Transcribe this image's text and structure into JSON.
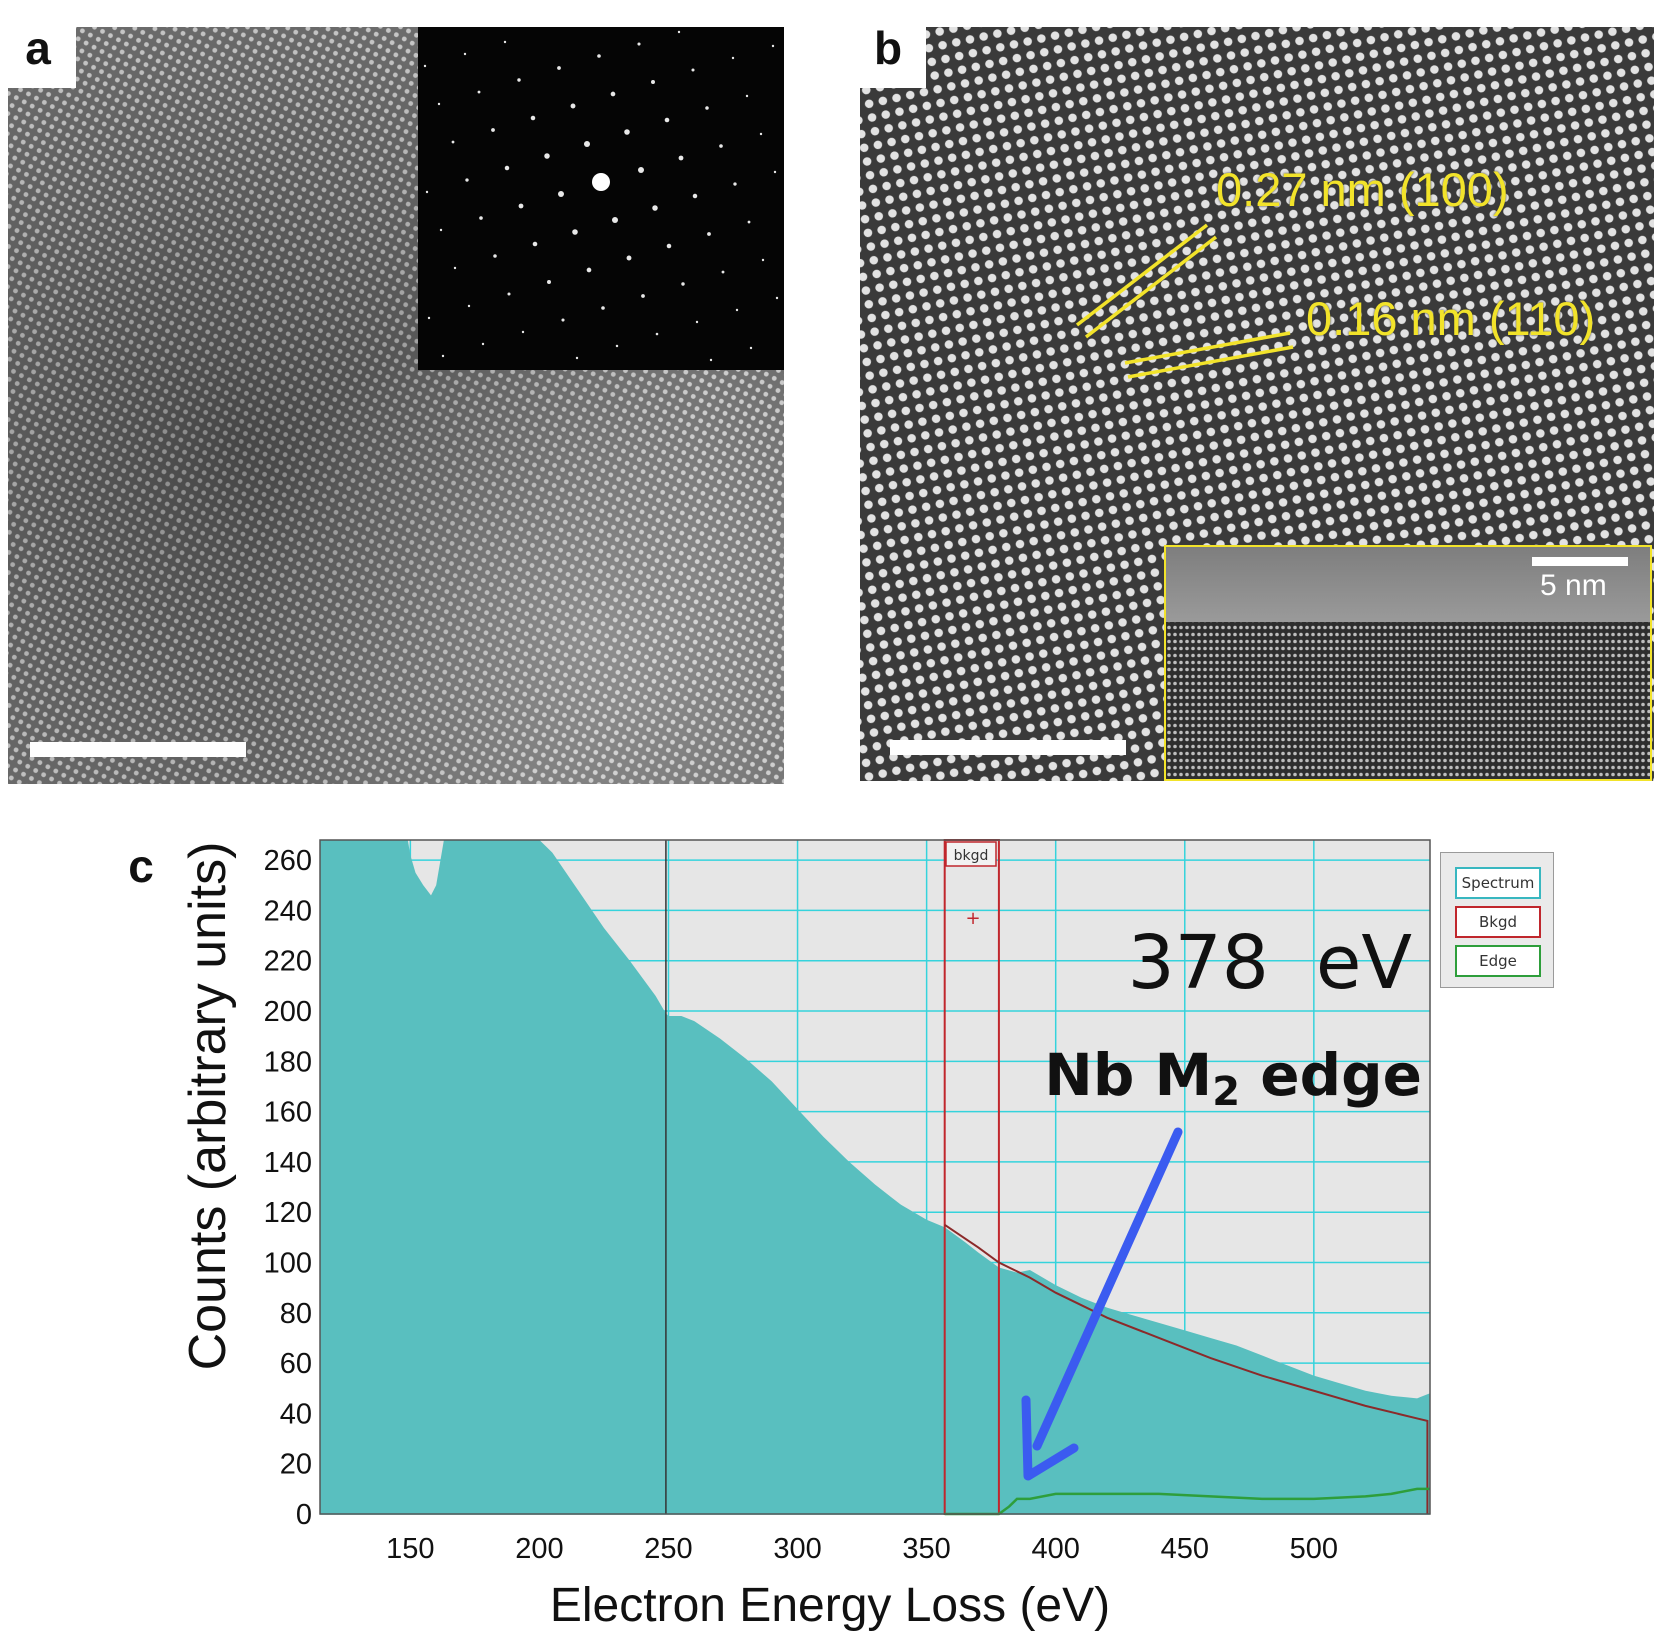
{
  "panel_a": {
    "label": "a"
  },
  "panel_b": {
    "label": "b",
    "annotation_100": "0.27 nm (100)",
    "annotation_110": "0.16 nm (110)",
    "inset_scale_label": "5 nm",
    "annotation_color": "#f2e32a"
  },
  "panel_c": {
    "label": "c",
    "energy_text": "378  eV",
    "edge_text_prefix": "Nb M",
    "edge_text_sub": "2",
    "edge_text_suffix": " edge",
    "bkgd_label": "bkgd",
    "legend": [
      "Spectrum",
      "Bkgd",
      "Edge"
    ],
    "legend_colors": [
      "#38b7c0",
      "#c0272d",
      "#2e9e3b"
    ],
    "arrow_color": "#3b5bf0",
    "fill_color": "#59bfbf"
  },
  "chart_data": {
    "type": "area",
    "xlabel": "Electron Energy Loss (eV)",
    "ylabel": "Counts (arbitrary units)",
    "xlim": [
      115,
      545
    ],
    "ylim": [
      0,
      268
    ],
    "x_ticks": [
      150,
      200,
      250,
      300,
      350,
      400,
      450,
      500
    ],
    "y_ticks": [
      0,
      20,
      40,
      60,
      80,
      100,
      120,
      140,
      160,
      180,
      200,
      220,
      240,
      260
    ],
    "grid": true,
    "legend_position": "right",
    "series": [
      {
        "name": "Spectrum",
        "x": [
          115,
          149,
          150,
          152,
          155,
          158,
          160,
          162,
          163,
          165,
          170,
          200,
          205,
          215,
          225,
          235,
          245,
          249,
          250,
          255,
          260,
          270,
          280,
          290,
          300,
          310,
          320,
          330,
          340,
          350,
          357,
          365,
          370,
          378,
          385,
          390,
          400,
          410,
          420,
          430,
          440,
          450,
          460,
          470,
          480,
          490,
          500,
          510,
          520,
          530,
          540,
          545
        ],
        "y": [
          268,
          268,
          262,
          255,
          250,
          246,
          250,
          262,
          268,
          268,
          268,
          268,
          263,
          248,
          233,
          220,
          206,
          199,
          198,
          198,
          196,
          189,
          181,
          172,
          161,
          150,
          140,
          131,
          123,
          117,
          114,
          108,
          104,
          98,
          96,
          97,
          91,
          86,
          82,
          79,
          76,
          73,
          70,
          67,
          63,
          59,
          55,
          52,
          49,
          47,
          46,
          48
        ]
      },
      {
        "name": "Bkgd",
        "x": [
          357,
          370,
          378,
          390,
          400,
          420,
          440,
          460,
          480,
          500,
          520,
          540,
          544
        ],
        "y": [
          115,
          106,
          100,
          94,
          88,
          78,
          70,
          62,
          55,
          49,
          43,
          38,
          37
        ]
      },
      {
        "name": "Edge",
        "x": [
          378,
          382,
          385,
          390,
          400,
          420,
          440,
          460,
          480,
          500,
          520,
          530,
          540,
          545
        ],
        "y": [
          0,
          3,
          6,
          6,
          8,
          8,
          8,
          7,
          6,
          6,
          7,
          8,
          10,
          10
        ]
      }
    ],
    "markers": [
      {
        "x": 249,
        "label": ""
      },
      {
        "x": 357,
        "label": ""
      },
      {
        "x": 378,
        "label": ""
      }
    ]
  }
}
